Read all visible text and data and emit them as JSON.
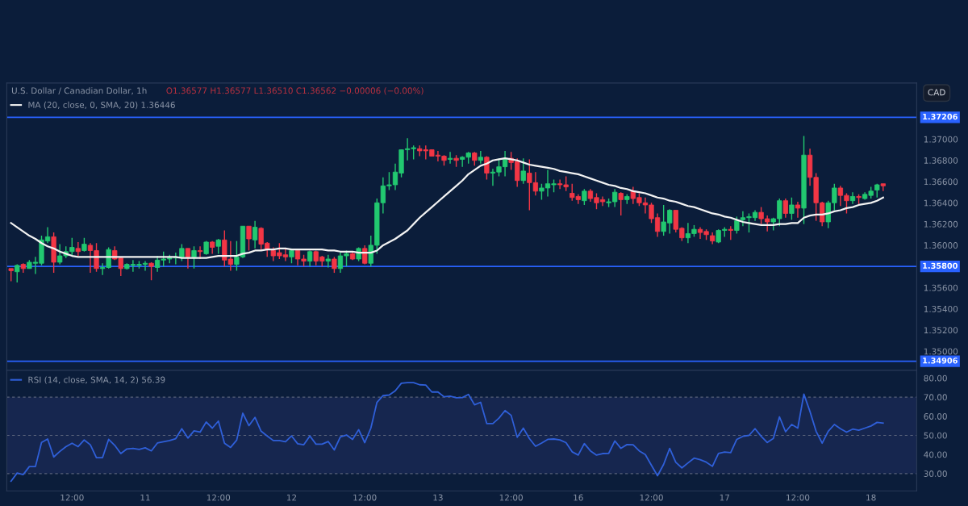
{
  "chart_data": [
    {
      "type": "candlestick",
      "title": "U.S. Dollar / Canadian Dollar, 1h",
      "subtitle": "O1.36577 H1.36577 L1.36510 C1.36562 −0.00006 (−0.00%)",
      "annotations": [
        "CAD"
      ],
      "categories": [
        null,
        null,
        null,
        null,
        null,
        null,
        null,
        null,
        null,
        null,
        null,
        null,
        null,
        null,
        null,
        null,
        null,
        null,
        null,
        null,
        null,
        null,
        null,
        null,
        null,
        null,
        null,
        null,
        null,
        null,
        null,
        null,
        null,
        null,
        null,
        null,
        null,
        null,
        null,
        null,
        null,
        null,
        null,
        null,
        null,
        null,
        null,
        null,
        null,
        null,
        null,
        null,
        null,
        null,
        null,
        null,
        null,
        null,
        null,
        null,
        null,
        null,
        null,
        null,
        null,
        null,
        null,
        null,
        null,
        null,
        null,
        null,
        null,
        null,
        null,
        null,
        null,
        null,
        null,
        null,
        null,
        null,
        null,
        null,
        null,
        null,
        null,
        null,
        null,
        null,
        null,
        null,
        null,
        null,
        null,
        null,
        null,
        null,
        null,
        null,
        null,
        null,
        null,
        null,
        null,
        null,
        null,
        null,
        null,
        null,
        null,
        null,
        null,
        null,
        null,
        null,
        null,
        null,
        null,
        null,
        null,
        null,
        null,
        null,
        null,
        null,
        null,
        null,
        null,
        null,
        null,
        null,
        null,
        null,
        null,
        null,
        null,
        null,
        null,
        null,
        null,
        null,
        null,
        null
      ],
      "ohlc": [
        [
          1.3578,
          1.3578,
          1.3566,
          1.3576
        ],
        [
          1.3575,
          1.3582,
          1.3565,
          1.3581
        ],
        [
          1.3582,
          1.3583,
          1.3574,
          1.3578
        ],
        [
          1.3578,
          1.3586,
          1.3578,
          1.3584
        ],
        [
          1.3583,
          1.3589,
          1.3573,
          1.3584
        ],
        [
          1.3583,
          1.3609,
          1.3581,
          1.3605
        ],
        [
          1.3604,
          1.3617,
          1.3602,
          1.3608
        ],
        [
          1.3608,
          1.3612,
          1.3574,
          1.3584
        ],
        [
          1.3584,
          1.3601,
          1.3582,
          1.359
        ],
        [
          1.359,
          1.3599,
          1.3588,
          1.3594
        ],
        [
          1.3594,
          1.3607,
          1.359,
          1.3598
        ],
        [
          1.3597,
          1.3603,
          1.359,
          1.3594
        ],
        [
          1.3595,
          1.3607,
          1.3594,
          1.3601
        ],
        [
          1.36,
          1.3602,
          1.3574,
          1.3595
        ],
        [
          1.3595,
          1.3602,
          1.3575,
          1.3578
        ],
        [
          1.3578,
          1.3583,
          1.3572,
          1.3579
        ],
        [
          1.3579,
          1.3598,
          1.3578,
          1.3596
        ],
        [
          1.3595,
          1.3599,
          1.3586,
          1.3587
        ],
        [
          1.3588,
          1.3589,
          1.3571,
          1.3578
        ],
        [
          1.3578,
          1.3583,
          1.3577,
          1.3582
        ],
        [
          1.3581,
          1.3586,
          1.3575,
          1.3582
        ],
        [
          1.3581,
          1.3585,
          1.3578,
          1.3582
        ],
        [
          1.3582,
          1.3585,
          1.3576,
          1.3583
        ],
        [
          1.3583,
          1.3584,
          1.3567,
          1.358
        ],
        [
          1.3579,
          1.359,
          1.3575,
          1.3586
        ],
        [
          1.3586,
          1.3594,
          1.358,
          1.3587
        ],
        [
          1.3587,
          1.3591,
          1.3583,
          1.3588
        ],
        [
          1.3588,
          1.3593,
          1.3582,
          1.3589
        ],
        [
          1.3589,
          1.3601,
          1.3585,
          1.3597
        ],
        [
          1.3597,
          1.3597,
          1.3578,
          1.3589
        ],
        [
          1.3589,
          1.3599,
          1.3578,
          1.3595
        ],
        [
          1.3595,
          1.3599,
          1.3587,
          1.3594
        ],
        [
          1.3592,
          1.3604,
          1.3591,
          1.3603
        ],
        [
          1.3603,
          1.3604,
          1.3592,
          1.3598
        ],
        [
          1.3599,
          1.3606,
          1.3592,
          1.3605
        ],
        [
          1.3605,
          1.3614,
          1.358,
          1.3586
        ],
        [
          1.3587,
          1.3604,
          1.3576,
          1.3582
        ],
        [
          1.3582,
          1.3604,
          1.3576,
          1.3589
        ],
        [
          1.3589,
          1.3618,
          1.3588,
          1.3618
        ],
        [
          1.3618,
          1.3618,
          1.3595,
          1.3606
        ],
        [
          1.3605,
          1.3623,
          1.3597,
          1.3617
        ],
        [
          1.3616,
          1.3617,
          1.3596,
          1.3601
        ],
        [
          1.3602,
          1.3603,
          1.3589,
          1.3596
        ],
        [
          1.3595,
          1.3598,
          1.3585,
          1.359
        ],
        [
          1.3593,
          1.3602,
          1.3587,
          1.359
        ],
        [
          1.3591,
          1.3597,
          1.3585,
          1.3589
        ],
        [
          1.3589,
          1.3597,
          1.3583,
          1.3595
        ],
        [
          1.3595,
          1.3595,
          1.3581,
          1.3587
        ],
        [
          1.3587,
          1.3591,
          1.358,
          1.3585
        ],
        [
          1.3585,
          1.3595,
          1.358,
          1.3594
        ],
        [
          1.3594,
          1.3595,
          1.3581,
          1.3585
        ],
        [
          1.3589,
          1.359,
          1.358,
          1.3585
        ],
        [
          1.3585,
          1.3591,
          1.3579,
          1.3587
        ],
        [
          1.3587,
          1.3589,
          1.3574,
          1.3578
        ],
        [
          1.3578,
          1.3593,
          1.3574,
          1.359
        ],
        [
          1.359,
          1.3595,
          1.358,
          1.3592
        ],
        [
          1.3592,
          1.3593,
          1.3586,
          1.3587
        ],
        [
          1.3587,
          1.3598,
          1.3585,
          1.3597
        ],
        [
          1.3597,
          1.36,
          1.3582,
          1.3583
        ],
        [
          1.3583,
          1.3609,
          1.358,
          1.36
        ],
        [
          1.36,
          1.3644,
          1.3592,
          1.364
        ],
        [
          1.364,
          1.3664,
          1.363,
          1.3656
        ],
        [
          1.3656,
          1.3669,
          1.3652,
          1.3657
        ],
        [
          1.3657,
          1.3677,
          1.3652,
          1.3669
        ],
        [
          1.3668,
          1.369,
          1.3664,
          1.369
        ],
        [
          1.369,
          1.3701,
          1.368,
          1.3691
        ],
        [
          1.3691,
          1.3694,
          1.3681,
          1.3692
        ],
        [
          1.3691,
          1.3694,
          1.3684,
          1.3689
        ],
        [
          1.369,
          1.3694,
          1.3681,
          1.3689
        ],
        [
          1.369,
          1.369,
          1.3684,
          1.3684
        ],
        [
          1.3685,
          1.3689,
          1.3679,
          1.3684
        ],
        [
          1.3684,
          1.3685,
          1.3675,
          1.368
        ],
        [
          1.3681,
          1.3688,
          1.3677,
          1.3682
        ],
        [
          1.3682,
          1.3685,
          1.3674,
          1.368
        ],
        [
          1.3681,
          1.3684,
          1.3674,
          1.3683
        ],
        [
          1.3683,
          1.3688,
          1.3677,
          1.3687
        ],
        [
          1.3687,
          1.3688,
          1.3675,
          1.368
        ],
        [
          1.368,
          1.3689,
          1.3677,
          1.3683
        ],
        [
          1.3683,
          1.3684,
          1.3662,
          1.3668
        ],
        [
          1.3668,
          1.3672,
          1.3656,
          1.3669
        ],
        [
          1.3669,
          1.3682,
          1.3665,
          1.3674
        ],
        [
          1.3674,
          1.3689,
          1.3665,
          1.3682
        ],
        [
          1.3682,
          1.3688,
          1.3671,
          1.3678
        ],
        [
          1.3679,
          1.3682,
          1.3655,
          1.3661
        ],
        [
          1.3661,
          1.3682,
          1.3658,
          1.367
        ],
        [
          1.3668,
          1.3681,
          1.3633,
          1.3659
        ],
        [
          1.3659,
          1.3669,
          1.3647,
          1.3651
        ],
        [
          1.3651,
          1.3658,
          1.3643,
          1.3654
        ],
        [
          1.3654,
          1.3671,
          1.3646,
          1.3658
        ],
        [
          1.3657,
          1.3662,
          1.365,
          1.3658
        ],
        [
          1.3658,
          1.3662,
          1.3653,
          1.3657
        ],
        [
          1.3657,
          1.3665,
          1.3651,
          1.3655
        ],
        [
          1.3649,
          1.3658,
          1.3642,
          1.3645
        ],
        [
          1.3646,
          1.3648,
          1.3639,
          1.3643
        ],
        [
          1.3642,
          1.3653,
          1.3638,
          1.3651
        ],
        [
          1.3651,
          1.3653,
          1.3641,
          1.3644
        ],
        [
          1.3645,
          1.3649,
          1.3634,
          1.364
        ],
        [
          1.3643,
          1.3646,
          1.3637,
          1.3641
        ],
        [
          1.364,
          1.3644,
          1.3636,
          1.3641
        ],
        [
          1.3641,
          1.3653,
          1.3636,
          1.365
        ],
        [
          1.3649,
          1.365,
          1.3628,
          1.3643
        ],
        [
          1.3643,
          1.3648,
          1.3639,
          1.3646
        ],
        [
          1.3651,
          1.3655,
          1.3639,
          1.3644
        ],
        [
          1.3645,
          1.3649,
          1.3637,
          1.364
        ],
        [
          1.364,
          1.3645,
          1.363,
          1.3638
        ],
        [
          1.3638,
          1.364,
          1.3621,
          1.3625
        ],
        [
          1.3626,
          1.363,
          1.3608,
          1.3613
        ],
        [
          1.3613,
          1.3638,
          1.3609,
          1.3622
        ],
        [
          1.3621,
          1.3634,
          1.3611,
          1.3633
        ],
        [
          1.3633,
          1.3633,
          1.3612,
          1.3615
        ],
        [
          1.3616,
          1.3617,
          1.3604,
          1.3607
        ],
        [
          1.3607,
          1.3621,
          1.3602,
          1.3611
        ],
        [
          1.3611,
          1.3619,
          1.3608,
          1.3615
        ],
        [
          1.3615,
          1.3617,
          1.3606,
          1.3612
        ],
        [
          1.3613,
          1.3615,
          1.3605,
          1.361
        ],
        [
          1.3609,
          1.3612,
          1.3601,
          1.3604
        ],
        [
          1.3603,
          1.3615,
          1.3602,
          1.3614
        ],
        [
          1.3614,
          1.3617,
          1.3608,
          1.3615
        ],
        [
          1.3615,
          1.3618,
          1.3605,
          1.3614
        ],
        [
          1.3614,
          1.3627,
          1.3611,
          1.3623
        ],
        [
          1.3624,
          1.3632,
          1.3618,
          1.3626
        ],
        [
          1.3626,
          1.363,
          1.3612,
          1.3627
        ],
        [
          1.3626,
          1.3633,
          1.3623,
          1.3631
        ],
        [
          1.3631,
          1.3636,
          1.362,
          1.3625
        ],
        [
          1.3625,
          1.3628,
          1.3613,
          1.3622
        ],
        [
          1.3622,
          1.3626,
          1.3614,
          1.3625
        ],
        [
          1.3625,
          1.3644,
          1.3618,
          1.3642
        ],
        [
          1.3642,
          1.3644,
          1.3626,
          1.363
        ],
        [
          1.363,
          1.3645,
          1.3624,
          1.3638
        ],
        [
          1.3638,
          1.3641,
          1.3626,
          1.3635
        ],
        [
          1.3635,
          1.3703,
          1.362,
          1.3685
        ],
        [
          1.3685,
          1.3691,
          1.3656,
          1.3664
        ],
        [
          1.3664,
          1.3668,
          1.3623,
          1.364
        ],
        [
          1.364,
          1.3641,
          1.3618,
          1.3622
        ],
        [
          1.3622,
          1.3642,
          1.3616,
          1.364
        ],
        [
          1.364,
          1.3658,
          1.3633,
          1.3654
        ],
        [
          1.3654,
          1.3656,
          1.3637,
          1.3647
        ],
        [
          1.3647,
          1.3649,
          1.363,
          1.3642
        ],
        [
          1.3642,
          1.365,
          1.3639,
          1.3646
        ],
        [
          1.3646,
          1.3648,
          1.3639,
          1.3645
        ],
        [
          1.3644,
          1.365,
          1.3643,
          1.3648
        ],
        [
          1.3647,
          1.3655,
          1.3644,
          1.3651
        ],
        [
          1.3652,
          1.3658,
          1.3645,
          1.3657
        ],
        [
          1.3658,
          1.3658,
          1.3651,
          1.3656
        ]
      ],
      "colors": [
        "#f23645",
        "#22c870",
        "#f23645",
        "#22c870",
        "#22c870",
        "#22c870",
        "#22c870",
        "#f23645",
        "#22c870",
        "#22c870",
        "#22c870",
        "#f23645",
        "#22c870",
        "#f23645",
        "#f23645",
        "#22c870",
        "#22c870",
        "#f23645",
        "#f23645",
        "#22c870",
        "#22c870",
        "#22c870",
        "#22c870",
        "#f23645",
        "#22c870",
        "#22c870",
        "#22c870",
        "#22c870",
        "#22c870",
        "#f23645",
        "#22c870",
        "#f23645",
        "#22c870",
        "#f23645",
        "#22c870",
        "#f23645",
        "#f23645",
        "#22c870",
        "#22c870",
        "#f23645",
        "#22c870",
        "#f23645",
        "#f23645",
        "#f23645",
        "#f23645",
        "#f23645",
        "#22c870",
        "#f23645",
        "#f23645",
        "#22c870",
        "#f23645",
        "#f23645",
        "#22c870",
        "#f23645",
        "#22c870",
        "#22c870",
        "#f23645",
        "#22c870",
        "#f23645",
        "#22c870",
        "#22c870",
        "#22c870",
        "#22c870",
        "#22c870",
        "#22c870",
        "#22c870",
        "#22c870",
        "#f23645",
        "#f23645",
        "#f23645",
        "#f23645",
        "#f23645",
        "#22c870",
        "#f23645",
        "#22c870",
        "#22c870",
        "#f23645",
        "#22c870",
        "#f23645",
        "#22c870",
        "#22c870",
        "#22c870",
        "#f23645",
        "#f23645",
        "#22c870",
        "#f23645",
        "#f23645",
        "#22c870",
        "#22c870",
        "#22c870",
        "#f23645",
        "#f23645",
        "#f23645",
        "#f23645",
        "#22c870",
        "#f23645",
        "#f23645",
        "#f23645",
        "#22c870",
        "#22c870",
        "#f23645",
        "#22c870",
        "#f23645",
        "#f23645",
        "#f23645",
        "#f23645",
        "#f23645",
        "#22c870",
        "#22c870",
        "#f23645",
        "#f23645",
        "#22c870",
        "#22c870",
        "#f23645",
        "#f23645",
        "#f23645",
        "#22c870",
        "#22c870",
        "#f23645",
        "#22c870",
        "#22c870",
        "#22c870",
        "#22c870",
        "#f23645",
        "#f23645",
        "#22c870",
        "#22c870",
        "#f23645",
        "#22c870",
        "#f23645",
        "#22c870",
        "#f23645",
        "#f23645",
        "#f23645",
        "#22c870",
        "#22c870",
        "#f23645",
        "#f23645",
        "#22c870",
        "#f23645",
        "#22c870",
        "#22c870",
        "#22c870",
        "#f23645"
      ],
      "series": [
        {
          "type": "line",
          "name": "MA (20, close, 0, SMA, 20) 1.36446",
          "color": "#f2f2f2",
          "values": [
            1.3621,
            1.3617,
            1.3613,
            1.3609,
            1.3606,
            1.3602,
            1.3599,
            1.3597,
            1.3594,
            1.3592,
            1.359,
            1.3589,
            1.3589,
            1.3589,
            1.3589,
            1.3589,
            1.3589,
            1.3589,
            1.3589,
            1.3589,
            1.3589,
            1.3589,
            1.3589,
            1.3589,
            1.3589,
            1.3589,
            1.3589,
            1.3589,
            1.3588,
            1.3588,
            1.3588,
            1.3588,
            1.3588,
            1.3589,
            1.359,
            1.359,
            1.359,
            1.359,
            1.3592,
            1.3593,
            1.3595,
            1.3595,
            1.3596,
            1.3596,
            1.3597,
            1.3597,
            1.3596,
            1.3596,
            1.3596,
            1.3596,
            1.3596,
            1.3596,
            1.3595,
            1.3595,
            1.3594,
            1.3594,
            1.3594,
            1.3593,
            1.3593,
            1.3593,
            1.3595,
            1.36,
            1.3603,
            1.3606,
            1.361,
            1.3614,
            1.362,
            1.3626,
            1.3631,
            1.3636,
            1.3641,
            1.3646,
            1.3651,
            1.3656,
            1.3661,
            1.3667,
            1.3671,
            1.3675,
            1.3677,
            1.368,
            1.3681,
            1.3682,
            1.3681,
            1.368,
            1.3678,
            1.3676,
            1.3675,
            1.3674,
            1.3673,
            1.3672,
            1.367,
            1.3669,
            1.3668,
            1.3667,
            1.3665,
            1.3663,
            1.3661,
            1.3659,
            1.3657,
            1.3656,
            1.3654,
            1.3653,
            1.3651,
            1.365,
            1.3649,
            1.3647,
            1.3645,
            1.3644,
            1.3642,
            1.3641,
            1.3639,
            1.3637,
            1.3636,
            1.3634,
            1.3632,
            1.363,
            1.3629,
            1.3627,
            1.3626,
            1.3624,
            1.3622,
            1.3621,
            1.362,
            1.3619,
            1.3619,
            1.3619,
            1.362,
            1.362,
            1.3621,
            1.3621,
            1.3626,
            1.3628,
            1.3629,
            1.3629,
            1.363,
            1.3632,
            1.3633,
            1.3635,
            1.3636,
            1.3638,
            1.3639,
            1.364,
            1.3642,
            1.3645
          ]
        }
      ],
      "ylim": [
        1.3482,
        1.3753
      ],
      "yticks": [
        {
          "value": 1.35,
          "label": "1.35000"
        },
        {
          "value": 1.352,
          "label": "1.35200"
        },
        {
          "value": 1.354,
          "label": "1.35400"
        },
        {
          "value": 1.356,
          "label": "1.35600"
        },
        {
          "value": 1.36,
          "label": "1.36000"
        },
        {
          "value": 1.362,
          "label": "1.36200"
        },
        {
          "value": 1.364,
          "label": "1.36400"
        },
        {
          "value": 1.366,
          "label": "1.36600"
        },
        {
          "value": 1.368,
          "label": "1.36800"
        },
        {
          "value": 1.37,
          "label": "1.37000"
        }
      ],
      "ref_lines": [
        {
          "axis": "y",
          "value": 1.37206,
          "label": "1.37206",
          "color": "#2962ff",
          "line_style": "solid"
        },
        {
          "axis": "y",
          "value": 1.358,
          "label": "1.35800",
          "color": "#2962ff",
          "line_style": "solid"
        },
        {
          "axis": "y",
          "value": 1.34906,
          "label": "1.34906",
          "color": "#2962ff",
          "line_style": "solid"
        }
      ],
      "tick_labels": "y",
      "legend": "top left"
    },
    {
      "type": "line",
      "categories": [
        null,
        null,
        null,
        null,
        null,
        null,
        null,
        null,
        null,
        null,
        "12:00",
        null,
        null,
        null,
        null,
        null,
        null,
        null,
        null,
        null,
        null,
        null,
        "11",
        null,
        null,
        null,
        null,
        null,
        null,
        null,
        null,
        null,
        null,
        null,
        "12:00",
        null,
        null,
        null,
        null,
        null,
        null,
        null,
        null,
        null,
        null,
        null,
        "12",
        null,
        null,
        null,
        null,
        null,
        null,
        null,
        null,
        null,
        null,
        null,
        "12:00",
        null,
        null,
        null,
        null,
        null,
        null,
        null,
        null,
        null,
        null,
        null,
        "13",
        null,
        null,
        null,
        null,
        null,
        null,
        null,
        null,
        null,
        null,
        null,
        "12:00",
        null,
        null,
        null,
        null,
        null,
        null,
        null,
        null,
        null,
        null,
        "16",
        null,
        null,
        null,
        null,
        null,
        null,
        null,
        null,
        null,
        null,
        null,
        "12:00",
        null,
        null,
        null,
        null,
        null,
        null,
        null,
        null,
        null,
        null,
        null,
        "17",
        null,
        null,
        null,
        null,
        null,
        null,
        null,
        null,
        null,
        null,
        null,
        "12:00",
        null,
        null,
        null,
        null,
        null,
        null,
        null,
        null,
        null,
        null,
        null,
        "18",
        null,
        null
      ],
      "series": [
        {
          "name": "RSI (14, close, SMA, 14, 2) 56.39",
          "color": "#2f5fd8",
          "values": [
            26.0,
            30.3,
            29.5,
            33.7,
            33.7,
            46.3,
            48.1,
            38.7,
            41.6,
            44.1,
            45.9,
            44.1,
            47.6,
            45.1,
            38.3,
            38.4,
            47.9,
            44.8,
            40.5,
            42.9,
            43.2,
            42.7,
            43.5,
            41.9,
            46.0,
            46.7,
            47.3,
            48.3,
            53.5,
            48.6,
            52.4,
            51.7,
            57.0,
            53.8,
            57.5,
            45.9,
            43.7,
            47.5,
            61.6,
            55.1,
            59.4,
            52.2,
            49.7,
            47.3,
            47.3,
            46.7,
            49.7,
            45.6,
            45.1,
            49.7,
            45.4,
            45.4,
            46.8,
            42.4,
            49.2,
            50.2,
            47.9,
            53.0,
            46.2,
            53.8,
            67.3,
            70.8,
            71.1,
            73.3,
            77.3,
            77.6,
            77.6,
            76.5,
            76.3,
            72.7,
            72.7,
            70.2,
            70.5,
            69.7,
            69.8,
            71.4,
            66.0,
            67.3,
            56.2,
            56.2,
            59.0,
            63.0,
            60.5,
            49.0,
            53.8,
            48.3,
            44.3,
            46.0,
            47.9,
            48.1,
            47.6,
            46.2,
            41.4,
            39.7,
            45.7,
            41.9,
            39.7,
            40.5,
            40.6,
            47.1,
            43.2,
            45.2,
            45.1,
            41.9,
            40.0,
            34.4,
            28.9,
            34.8,
            43.2,
            35.9,
            33.0,
            35.6,
            38.1,
            37.3,
            36.0,
            33.8,
            40.6,
            41.3,
            41.0,
            47.9,
            49.5,
            50.0,
            53.5,
            49.5,
            46.3,
            48.4,
            59.7,
            51.9,
            55.7,
            53.8,
            71.6,
            62.5,
            52.2,
            45.9,
            52.2,
            55.7,
            53.5,
            51.7,
            53.3,
            52.7,
            53.8,
            54.9,
            56.8,
            56.4
          ]
        }
      ],
      "ylim": [
        21,
        84
      ],
      "yticks": [
        {
          "value": 30,
          "label": "30.00"
        },
        {
          "value": 40,
          "label": "40.00"
        },
        {
          "value": 50,
          "label": "50.00"
        },
        {
          "value": 60,
          "label": "60.00"
        },
        {
          "value": 70,
          "label": "70.00"
        },
        {
          "value": 80,
          "label": "80.00"
        }
      ],
      "ref_lines": [
        {
          "axis": "y",
          "value": 30,
          "color": "#59627a",
          "line_style": "dashed"
        },
        {
          "axis": "y",
          "value": 50,
          "color": "#59627a",
          "line_style": "dashed"
        },
        {
          "axis": "y",
          "value": 70,
          "color": "#59627a",
          "line_style": "dashed"
        }
      ],
      "bands": [
        {
          "axis": "y",
          "from": 30,
          "to": 70,
          "color": "#16264f"
        }
      ],
      "legend": "top left"
    }
  ]
}
